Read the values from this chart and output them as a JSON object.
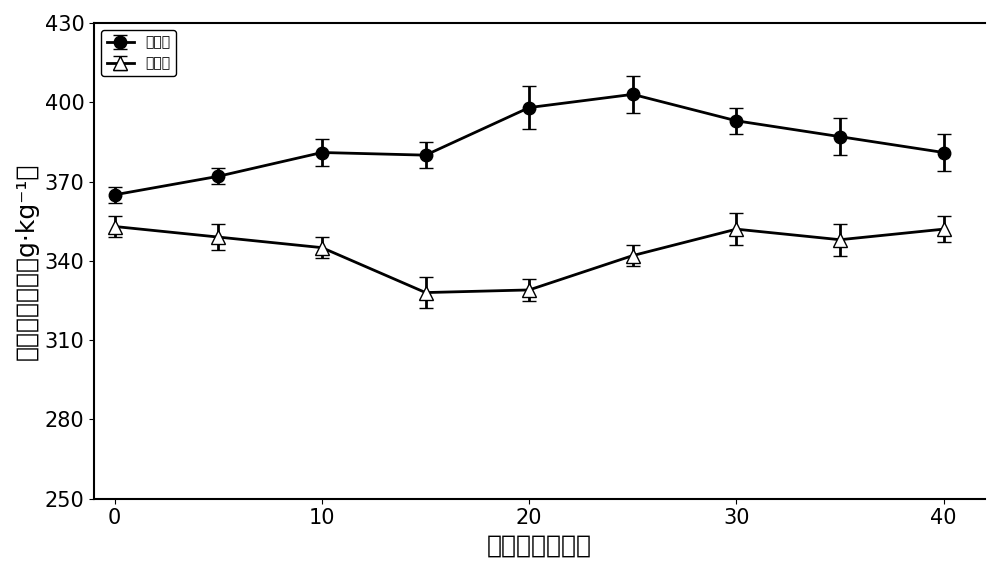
{
  "x": [
    0,
    5,
    10,
    15,
    20,
    25,
    30,
    35,
    40
  ],
  "exp_y": [
    365,
    372,
    381,
    380,
    398,
    403,
    393,
    387,
    381
  ],
  "ctrl_y": [
    353,
    349,
    345,
    328,
    329,
    342,
    352,
    348,
    352
  ],
  "exp_err": [
    3,
    3,
    5,
    5,
    8,
    7,
    5,
    7,
    7
  ],
  "ctrl_err": [
    4,
    5,
    4,
    6,
    4,
    4,
    6,
    6,
    5
  ],
  "xlabel": "堆肥时间（天）",
  "ylabel": "总腐櫜酸含量（g·kg⁻¹）",
  "legend_exp": "实验组",
  "legend_ctrl": "对照组",
  "ylim": [
    250,
    430
  ],
  "yticks": [
    250,
    280,
    310,
    340,
    370,
    400,
    430
  ],
  "xticks": [
    0,
    10,
    20,
    30,
    40
  ],
  "line_color": "#000000",
  "bg_color": "#ffffff",
  "fontsize_label": 18,
  "fontsize_tick": 15,
  "fontsize_legend": 17
}
